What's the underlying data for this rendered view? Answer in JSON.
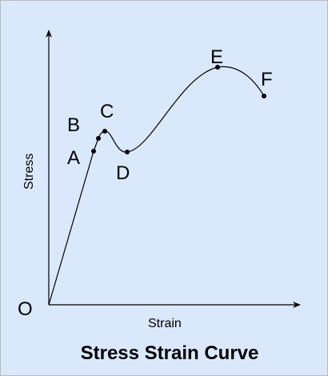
{
  "diagram": {
    "title": "Stress Strain Curve",
    "axes": {
      "x_label": "Strain",
      "y_label": "Stress",
      "origin_label": "O"
    },
    "points": [
      {
        "id": "A",
        "label": "A"
      },
      {
        "id": "B",
        "label": "B"
      },
      {
        "id": "C",
        "label": "C"
      },
      {
        "id": "D",
        "label": "D"
      },
      {
        "id": "E",
        "label": "E"
      },
      {
        "id": "F",
        "label": "F"
      }
    ],
    "colors": {
      "background": "#dae8fc",
      "stroke": "#000000",
      "frame_border": "#b8b8b8"
    }
  }
}
